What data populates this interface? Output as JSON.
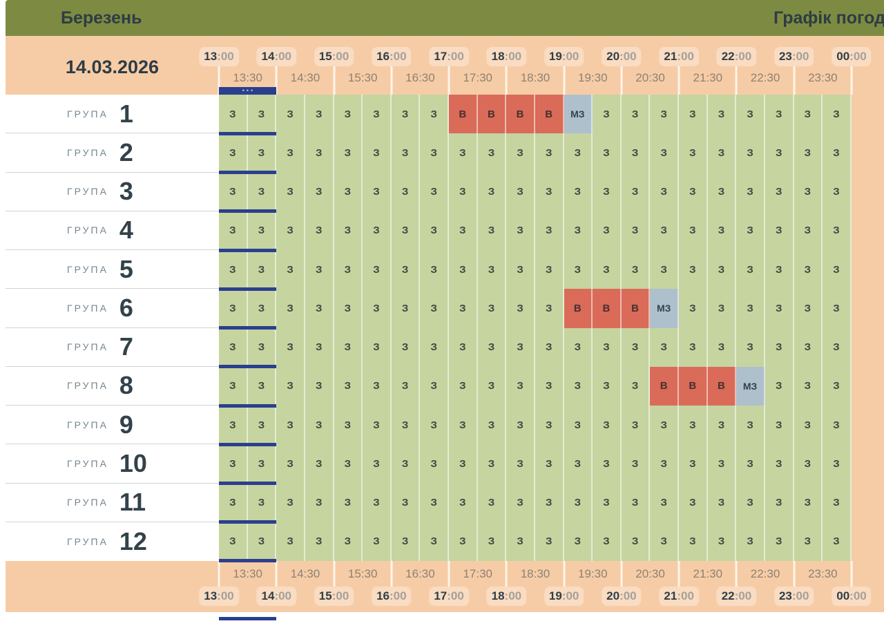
{
  "header": {
    "month": "Березень",
    "schedule_title": "Графік погод"
  },
  "date": "14.03.2026",
  "timeline": {
    "hours": [
      {
        "h": "13",
        "m": ":00"
      },
      {
        "h": "14",
        "m": ":00"
      },
      {
        "h": "15",
        "m": ":00"
      },
      {
        "h": "16",
        "m": ":00"
      },
      {
        "h": "17",
        "m": ":00"
      },
      {
        "h": "18",
        "m": ":00"
      },
      {
        "h": "19",
        "m": ":00"
      },
      {
        "h": "20",
        "m": ":00"
      },
      {
        "h": "21",
        "m": ":00"
      },
      {
        "h": "22",
        "m": ":00"
      },
      {
        "h": "23",
        "m": ":00"
      },
      {
        "h": "00",
        "m": ":00"
      }
    ],
    "half_hours": [
      "13:30",
      "14:30",
      "15:30",
      "16:30",
      "17:30",
      "18:30",
      "19:30",
      "20:30",
      "21:30",
      "22:30",
      "23:30"
    ],
    "now_dots": "•••",
    "now_hour_index": 0
  },
  "cell_states": {
    "powered": "З",
    "outage": "В",
    "possible": "МЗ"
  },
  "colors": {
    "topbar_olive": "#7d8b42",
    "band_peach": "#f6cca6",
    "badge_peach": "#f9dcc2",
    "cell_green": "#c6d4a0",
    "cell_red": "#d96b58",
    "cell_gray": "#aec0cc",
    "accent_navy": "#2b3f8e",
    "text_dark": "#2e3c45"
  },
  "groups": [
    {
      "label": "ГРУПА",
      "number": "1",
      "cells": [
        "З",
        "З",
        "З",
        "З",
        "З",
        "З",
        "З",
        "З",
        "В",
        "В",
        "В",
        "В",
        "МЗ",
        "З",
        "З",
        "З",
        "З",
        "З",
        "З",
        "З",
        "З",
        "З"
      ]
    },
    {
      "label": "ГРУПА",
      "number": "2",
      "cells": [
        "З",
        "З",
        "З",
        "З",
        "З",
        "З",
        "З",
        "З",
        "З",
        "З",
        "З",
        "З",
        "З",
        "З",
        "З",
        "З",
        "З",
        "З",
        "З",
        "З",
        "З",
        "З"
      ]
    },
    {
      "label": "ГРУПА",
      "number": "3",
      "cells": [
        "З",
        "З",
        "З",
        "З",
        "З",
        "З",
        "З",
        "З",
        "З",
        "З",
        "З",
        "З",
        "З",
        "З",
        "З",
        "З",
        "З",
        "З",
        "З",
        "З",
        "З",
        "З"
      ]
    },
    {
      "label": "ГРУПА",
      "number": "4",
      "cells": [
        "З",
        "З",
        "З",
        "З",
        "З",
        "З",
        "З",
        "З",
        "З",
        "З",
        "З",
        "З",
        "З",
        "З",
        "З",
        "З",
        "З",
        "З",
        "З",
        "З",
        "З",
        "З"
      ]
    },
    {
      "label": "ГРУПА",
      "number": "5",
      "cells": [
        "З",
        "З",
        "З",
        "З",
        "З",
        "З",
        "З",
        "З",
        "З",
        "З",
        "З",
        "З",
        "З",
        "З",
        "З",
        "З",
        "З",
        "З",
        "З",
        "З",
        "З",
        "З"
      ]
    },
    {
      "label": "ГРУПА",
      "number": "6",
      "cells": [
        "З",
        "З",
        "З",
        "З",
        "З",
        "З",
        "З",
        "З",
        "З",
        "З",
        "З",
        "З",
        "В",
        "В",
        "В",
        "МЗ",
        "З",
        "З",
        "З",
        "З",
        "З",
        "З"
      ]
    },
    {
      "label": "ГРУПА",
      "number": "7",
      "cells": [
        "З",
        "З",
        "З",
        "З",
        "З",
        "З",
        "З",
        "З",
        "З",
        "З",
        "З",
        "З",
        "З",
        "З",
        "З",
        "З",
        "З",
        "З",
        "З",
        "З",
        "З",
        "З"
      ]
    },
    {
      "label": "ГРУПА",
      "number": "8",
      "cells": [
        "З",
        "З",
        "З",
        "З",
        "З",
        "З",
        "З",
        "З",
        "З",
        "З",
        "З",
        "З",
        "З",
        "З",
        "З",
        "В",
        "В",
        "В",
        "МЗ",
        "З",
        "З",
        "З"
      ]
    },
    {
      "label": "ГРУПА",
      "number": "9",
      "cells": [
        "З",
        "З",
        "З",
        "З",
        "З",
        "З",
        "З",
        "З",
        "З",
        "З",
        "З",
        "З",
        "З",
        "З",
        "З",
        "З",
        "З",
        "З",
        "З",
        "З",
        "З",
        "З"
      ]
    },
    {
      "label": "ГРУПА",
      "number": "10",
      "cells": [
        "З",
        "З",
        "З",
        "З",
        "З",
        "З",
        "З",
        "З",
        "З",
        "З",
        "З",
        "З",
        "З",
        "З",
        "З",
        "З",
        "З",
        "З",
        "З",
        "З",
        "З",
        "З"
      ]
    },
    {
      "label": "ГРУПА",
      "number": "11",
      "cells": [
        "З",
        "З",
        "З",
        "З",
        "З",
        "З",
        "З",
        "З",
        "З",
        "З",
        "З",
        "З",
        "З",
        "З",
        "З",
        "З",
        "З",
        "З",
        "З",
        "З",
        "З",
        "З"
      ]
    },
    {
      "label": "ГРУПА",
      "number": "12",
      "cells": [
        "З",
        "З",
        "З",
        "З",
        "З",
        "З",
        "З",
        "З",
        "З",
        "З",
        "З",
        "З",
        "З",
        "З",
        "З",
        "З",
        "З",
        "З",
        "З",
        "З",
        "З",
        "З"
      ]
    }
  ]
}
